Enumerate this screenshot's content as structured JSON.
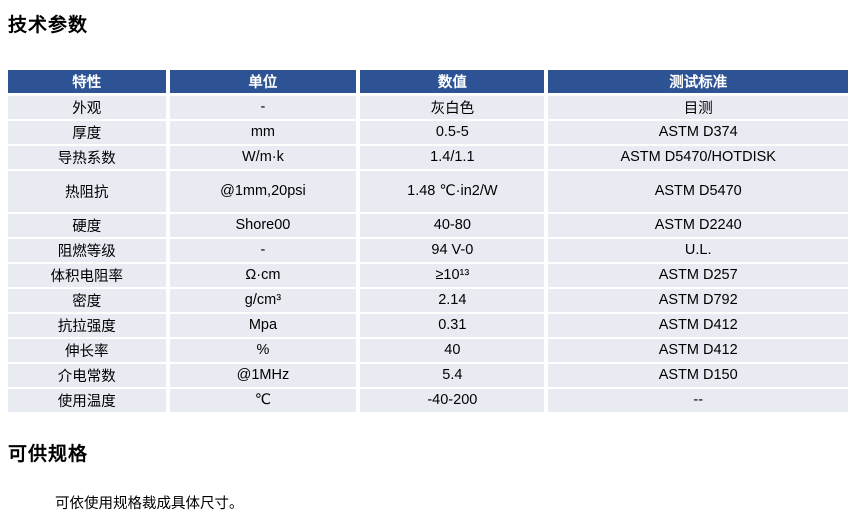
{
  "sections": {
    "tech_params_title": "技术参数",
    "specs_title": "可供规格",
    "specs_body": "可依使用规格裁成具体尺寸。"
  },
  "table": {
    "headers": [
      "特性",
      "单位",
      "数值",
      "测试标准"
    ],
    "rows": [
      {
        "property": "外观",
        "unit": "-",
        "value": "灰白色",
        "standard": "目测"
      },
      {
        "property": "厚度",
        "unit": "mm",
        "value": "0.5-5",
        "standard": "ASTM D374"
      },
      {
        "property": "导热系数",
        "unit": "W/m·k",
        "value": "1.4/1.1",
        "standard": "ASTM D5470/HOTDISK"
      },
      {
        "property": "热阻抗",
        "unit": "@1mm,20psi",
        "value": "1.48 ℃·in2/W",
        "standard": "ASTM D5470"
      },
      {
        "property": "硬度",
        "unit": "Shore00",
        "value": "40-80",
        "standard": "ASTM D2240"
      },
      {
        "property": "阻燃等级",
        "unit": "-",
        "value": "94 V-0",
        "standard": "U.L."
      },
      {
        "property": "体积电阻率",
        "unit": "Ω·cm",
        "value": "≥10¹³",
        "standard": "ASTM D257"
      },
      {
        "property": "密度",
        "unit": "g/cm³",
        "value": "2.14",
        "standard": "ASTM D792"
      },
      {
        "property": "抗拉强度",
        "unit": "Mpa",
        "value": "0.31",
        "standard": "ASTM D412"
      },
      {
        "property": "伸长率",
        "unit": "%",
        "value": "40",
        "standard": "ASTM D412"
      },
      {
        "property": "介电常数",
        "unit": "@1MHz",
        "value": "5.4",
        "standard": "ASTM D150"
      },
      {
        "property": "使用温度",
        "unit": "℃",
        "value": "-40-200",
        "standard": "--"
      }
    ]
  },
  "colors": {
    "header_bg": "#2E5394",
    "header_text": "#FFFFFF",
    "row_bg": "#E9EBF3"
  }
}
